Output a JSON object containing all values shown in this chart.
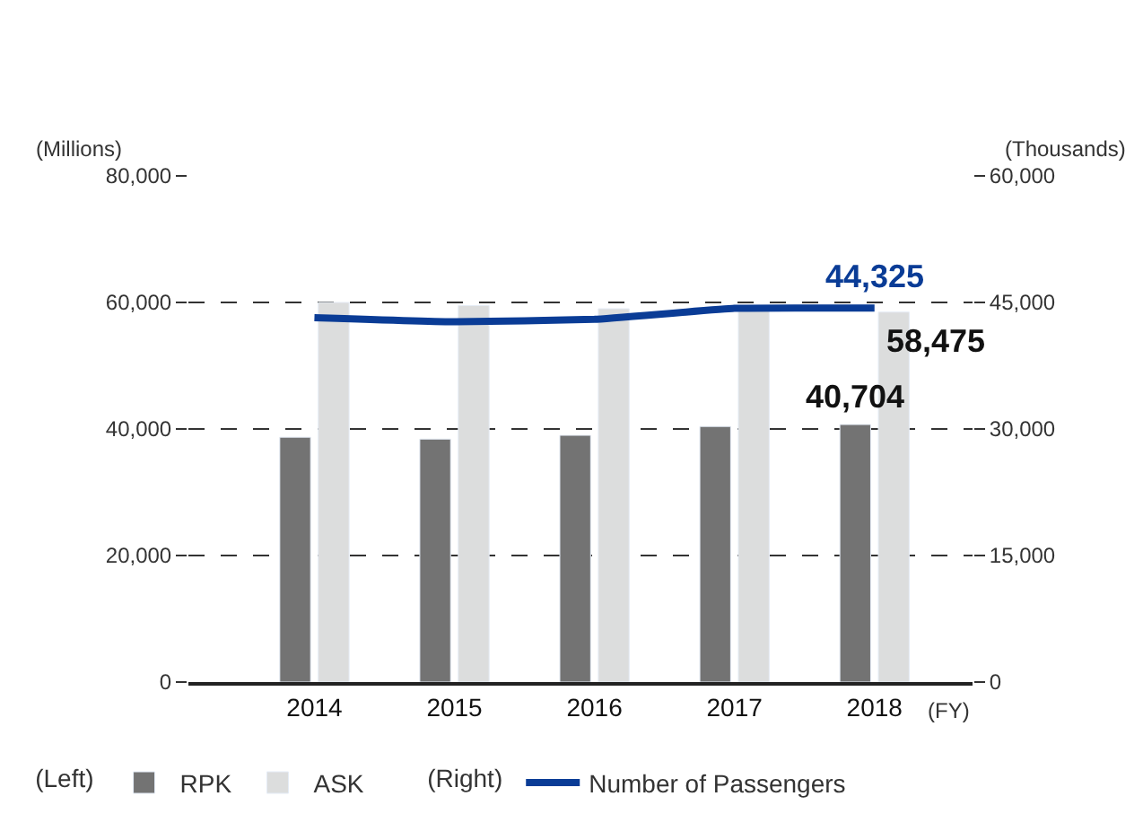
{
  "chart_data": {
    "type": "bar",
    "categories": [
      "2014",
      "2015",
      "2016",
      "2017",
      "2018"
    ],
    "xlabel": "(FY)",
    "ylabel": "(Millions)",
    "y2label": "(Thousands)",
    "series": [
      {
        "name": "RPK",
        "color": "#737373",
        "values": [
          38700,
          38400,
          39000,
          40400,
          40704
        ],
        "value_labels": [
          null,
          null,
          null,
          null,
          "40,704"
        ]
      },
      {
        "name": "ASK",
        "color": "#dcdddd",
        "values": [
          60000,
          59500,
          59000,
          58800,
          58475
        ],
        "value_labels": [
          null,
          null,
          null,
          null,
          "58,475"
        ]
      },
      {
        "name": "Number of Passengers",
        "type": "line",
        "axis": "y2",
        "color": "#0a3c96",
        "values": [
          43200,
          42700,
          43000,
          44300,
          44325
        ],
        "value_labels": [
          null,
          null,
          null,
          null,
          "44,325"
        ],
        "marker": "none",
        "line_style": "solid"
      }
    ],
    "ylim": [
      0,
      80000
    ],
    "yticks": [
      {
        "value": 0,
        "label": "0"
      },
      {
        "value": 20000,
        "label": "20,000"
      },
      {
        "value": 40000,
        "label": "40,000"
      },
      {
        "value": 60000,
        "label": "60,000"
      },
      {
        "value": 80000,
        "label": "80,000"
      }
    ],
    "y2lim": [
      0,
      60000
    ],
    "y2ticks": [
      {
        "value": 0,
        "label": "0"
      },
      {
        "value": 15000,
        "label": "15,000"
      },
      {
        "value": 30000,
        "label": "30,000"
      },
      {
        "value": 45000,
        "label": "45,000"
      },
      {
        "value": 60000,
        "label": "60,000"
      }
    ],
    "grid": "y",
    "legend": "bottom",
    "annotations": [
      "(Left)",
      "(Right)"
    ]
  }
}
